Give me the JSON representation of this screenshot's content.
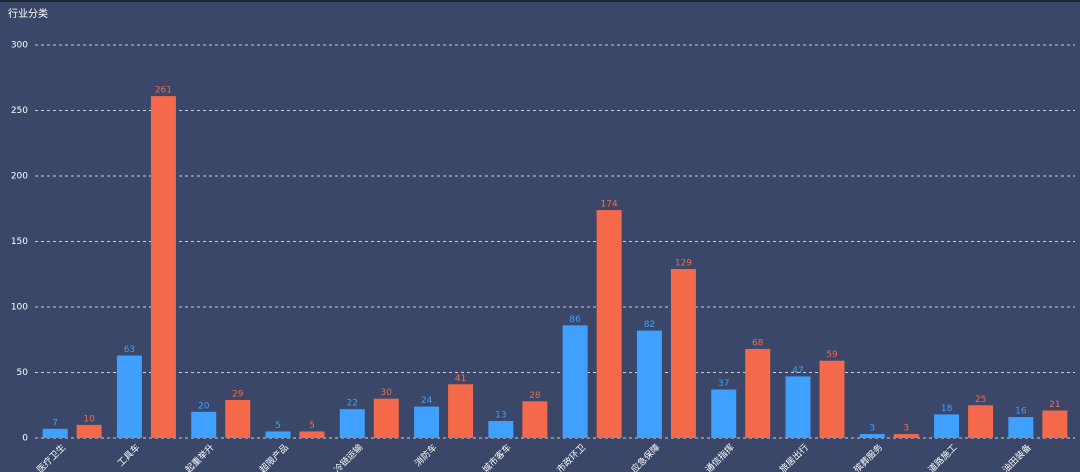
{
  "chart_data": {
    "type": "bar",
    "title": "行业分类",
    "categories": [
      "医疗卫生",
      "工具车",
      "起重举升",
      "超限产品",
      "冷链运输",
      "消防车",
      "城市客车",
      "市政环卫",
      "应急保障",
      "通信指挥",
      "旅居出行",
      "殡葬服务",
      "道路施工",
      "油田装备"
    ],
    "series": [
      {
        "color": "#3fa0ff",
        "values": [
          7,
          63,
          20,
          5,
          22,
          24,
          13,
          86,
          82,
          37,
          47,
          3,
          18,
          16
        ]
      },
      {
        "color": "#f4694a",
        "values": [
          10,
          261,
          29,
          5,
          30,
          41,
          28,
          174,
          129,
          68,
          59,
          3,
          25,
          21
        ]
      }
    ],
    "ylim": [
      0,
      300
    ],
    "yticks": [
      0,
      50,
      100,
      150,
      200,
      250,
      300
    ],
    "grid": true
  }
}
